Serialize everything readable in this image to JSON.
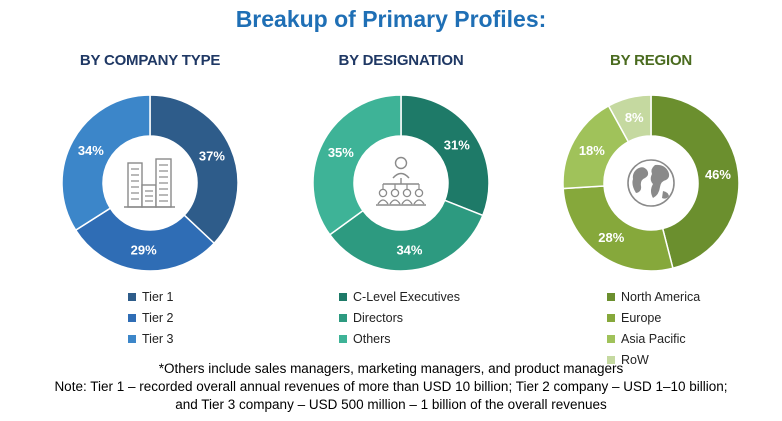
{
  "title": "Breakup of Primary Profiles:",
  "chart_data": [
    {
      "type": "pie",
      "title": "BY COMPANY TYPE",
      "title_color": "#1f3864",
      "center_icon": "buildings-icon",
      "categories": [
        "Tier 1",
        "Tier 2",
        "Tier 3"
      ],
      "values": [
        37,
        29,
        34
      ],
      "labels": [
        "37%",
        "29%",
        "34%"
      ],
      "colors": [
        "#2e5c8a",
        "#2f6db5",
        "#3c86c9"
      ]
    },
    {
      "type": "pie",
      "title": "BY DESIGNATION",
      "title_color": "#1f3864",
      "center_icon": "hierarchy-people-icon",
      "categories": [
        "C-Level Executives",
        "Directors",
        "Others"
      ],
      "values": [
        31,
        34,
        35
      ],
      "labels": [
        "31%",
        "34%",
        "35%"
      ],
      "colors": [
        "#1e7a68",
        "#2d9a80",
        "#3eb397"
      ]
    },
    {
      "type": "pie",
      "title": "BY REGION",
      "title_color": "#4a6b1f",
      "center_icon": "globe-icon",
      "categories": [
        "North America",
        "Europe",
        "Asia Pacific",
        "RoW"
      ],
      "values": [
        46,
        28,
        18,
        8
      ],
      "labels": [
        "46%",
        "28%",
        "18%",
        "8%"
      ],
      "colors": [
        "#6b8f2e",
        "#86a83b",
        "#a0c25a",
        "#c5d9a0"
      ]
    }
  ],
  "footnotes": [
    "*Others include sales managers, marketing managers, and product managers",
    "Note: Tier 1 – recorded overall annual revenues of more than USD 10 billion; Tier 2 company – USD 1–10 billion;",
    "and Tier 3 company – USD 500 million – 1 billion of the overall revenues"
  ]
}
